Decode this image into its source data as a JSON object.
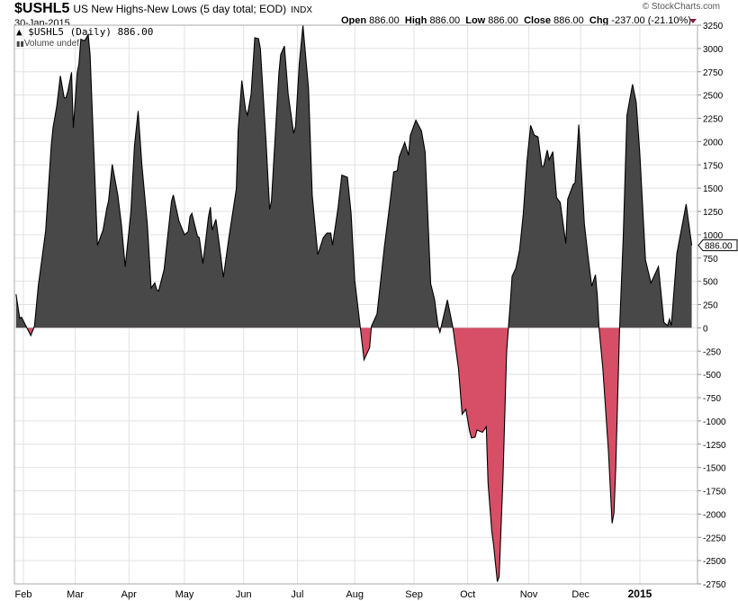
{
  "header": {
    "symbol": "$USHL5",
    "title": "US New Highs-New Lows (5 day total; EOD)",
    "exchange": "INDX",
    "date": "30-Jan-2015",
    "copyright": "© StockCharts.com",
    "open_label": "Open",
    "open": "886.00",
    "high_label": "High",
    "high": "886.00",
    "low_label": "Low",
    "low": "886.00",
    "close_label": "Close",
    "close": "886.00",
    "chg_label": "Chg",
    "chg": "-237.00 (-21.10%)",
    "chg_direction": "down"
  },
  "legend": {
    "series": "$USHL5 (Daily) 886.00",
    "volume": "Volume undef"
  },
  "chart_data": {
    "type": "area",
    "title": "",
    "xlabel": "",
    "ylabel": "",
    "ylim": [
      -2750,
      3250
    ],
    "y_ticks": [
      3250,
      3000,
      2750,
      2500,
      2250,
      2000,
      1750,
      1500,
      1250,
      1000,
      750,
      500,
      250,
      0,
      -250,
      -500,
      -750,
      -1000,
      -1250,
      -1500,
      -1750,
      -2000,
      -2250,
      -2500,
      -2750
    ],
    "x_ticks": [
      {
        "label": "Feb",
        "date": "2014-02-03"
      },
      {
        "label": "Mar",
        "date": "2014-03-03"
      },
      {
        "label": "Apr",
        "date": "2014-04-01"
      },
      {
        "label": "May",
        "date": "2014-05-01"
      },
      {
        "label": "Jun",
        "date": "2014-06-02"
      },
      {
        "label": "Jul",
        "date": "2014-07-01"
      },
      {
        "label": "Aug",
        "date": "2014-08-01"
      },
      {
        "label": "Sep",
        "date": "2014-09-02"
      },
      {
        "label": "Oct",
        "date": "2014-10-01"
      },
      {
        "label": "Nov",
        "date": "2014-11-03"
      },
      {
        "label": "Dec",
        "date": "2014-12-01"
      },
      {
        "label": "2015",
        "date": "2015-01-02",
        "bold": true
      }
    ],
    "grid": true,
    "last_value_label": "886.00",
    "colors": {
      "positive": "#484848",
      "negative": "#d64f66",
      "line": "#000000",
      "grid": "#e2e2e2"
    },
    "points": [
      [
        "2014-01-30",
        361
      ],
      [
        "2014-02-01",
        102
      ],
      [
        "2014-02-02",
        115
      ],
      [
        "2014-02-07",
        -82
      ],
      [
        "2014-02-09",
        17
      ],
      [
        "2014-02-11",
        446
      ],
      [
        "2014-02-15",
        1037
      ],
      [
        "2014-02-18",
        1952
      ],
      [
        "2014-02-19",
        2148
      ],
      [
        "2014-02-21",
        2377
      ],
      [
        "2014-02-23",
        2706
      ],
      [
        "2014-02-25",
        2470
      ],
      [
        "2014-02-26",
        2470
      ],
      [
        "2014-02-27",
        2541
      ],
      [
        "2014-03-01",
        2745
      ],
      [
        "2014-03-02",
        2148
      ],
      [
        "2014-03-04",
        2735
      ],
      [
        "2014-03-05",
        2834
      ],
      [
        "2014-03-06",
        3099
      ],
      [
        "2014-03-08",
        3082
      ],
      [
        "2014-03-10",
        3148
      ],
      [
        "2014-03-11",
        2935
      ],
      [
        "2014-03-15",
        886
      ],
      [
        "2014-03-18",
        1050
      ],
      [
        "2014-03-20",
        1280
      ],
      [
        "2014-03-21",
        1361
      ],
      [
        "2014-03-23",
        1755
      ],
      [
        "2014-03-26",
        1427
      ],
      [
        "2014-03-28",
        1099
      ],
      [
        "2014-03-30",
        656
      ],
      [
        "2014-04-02",
        1230
      ],
      [
        "2014-04-04",
        1952
      ],
      [
        "2014-04-06",
        2328
      ],
      [
        "2014-04-08",
        1755
      ],
      [
        "2014-04-11",
        1099
      ],
      [
        "2014-04-13",
        427
      ],
      [
        "2014-04-15",
        483
      ],
      [
        "2014-04-16",
        410
      ],
      [
        "2014-04-17",
        394
      ],
      [
        "2014-04-20",
        624
      ],
      [
        "2014-04-24",
        1361
      ],
      [
        "2014-04-25",
        1427
      ],
      [
        "2014-04-28",
        1148
      ],
      [
        "2014-05-01",
        1000
      ],
      [
        "2014-05-03",
        1034
      ],
      [
        "2014-05-04",
        1197
      ],
      [
        "2014-05-05",
        1230
      ],
      [
        "2014-05-08",
        985
      ],
      [
        "2014-05-09",
        968
      ],
      [
        "2014-05-11",
        690
      ],
      [
        "2014-05-14",
        1197
      ],
      [
        "2014-05-15",
        1295
      ],
      [
        "2014-05-16",
        1050
      ],
      [
        "2014-05-18",
        1165
      ],
      [
        "2014-05-20",
        870
      ],
      [
        "2014-05-22",
        542
      ],
      [
        "2014-05-25",
        968
      ],
      [
        "2014-05-29",
        1492
      ],
      [
        "2014-05-30",
        2115
      ],
      [
        "2014-06-01",
        2656
      ],
      [
        "2014-06-03",
        2344
      ],
      [
        "2014-06-04",
        2285
      ],
      [
        "2014-06-06",
        2509
      ],
      [
        "2014-06-08",
        3115
      ],
      [
        "2014-06-10",
        3105
      ],
      [
        "2014-06-11",
        3000
      ],
      [
        "2014-06-14",
        2016
      ],
      [
        "2014-06-16",
        1270
      ],
      [
        "2014-06-17",
        1361
      ],
      [
        "2014-06-21",
        2738
      ],
      [
        "2014-06-22",
        2935
      ],
      [
        "2014-06-24",
        3026
      ],
      [
        "2014-06-26",
        2509
      ],
      [
        "2014-06-29",
        2088
      ],
      [
        "2014-06-30",
        2164
      ],
      [
        "2014-07-02",
        2834
      ],
      [
        "2014-07-04",
        3247
      ],
      [
        "2014-07-07",
        2574
      ],
      [
        "2014-07-09",
        1427
      ],
      [
        "2014-07-12",
        787
      ],
      [
        "2014-07-15",
        968
      ],
      [
        "2014-07-17",
        1017
      ],
      [
        "2014-07-19",
        1017
      ],
      [
        "2014-07-20",
        886
      ],
      [
        "2014-07-23",
        1295
      ],
      [
        "2014-07-25",
        1640
      ],
      [
        "2014-07-28",
        1617
      ],
      [
        "2014-07-30",
        1230
      ],
      [
        "2014-08-01",
        509
      ],
      [
        "2014-08-04",
        0
      ],
      [
        "2014-08-06",
        -343
      ],
      [
        "2014-08-09",
        -212
      ],
      [
        "2014-08-10",
        17
      ],
      [
        "2014-08-13",
        149
      ],
      [
        "2014-08-17",
        870
      ],
      [
        "2014-08-20",
        1345
      ],
      [
        "2014-08-22",
        1673
      ],
      [
        "2014-08-24",
        1689
      ],
      [
        "2014-08-25",
        1837
      ],
      [
        "2014-08-28",
        1991
      ],
      [
        "2014-08-30",
        1853
      ],
      [
        "2014-08-31",
        2066
      ],
      [
        "2014-09-03",
        2230
      ],
      [
        "2014-09-06",
        2115
      ],
      [
        "2014-09-08",
        1886
      ],
      [
        "2014-09-11",
        476
      ],
      [
        "2014-09-13",
        312
      ],
      [
        "2014-09-15",
        17
      ],
      [
        "2014-09-16",
        -48
      ],
      [
        "2014-09-20",
        299
      ],
      [
        "2014-09-23",
        6
      ],
      [
        "2014-09-26",
        -435
      ],
      [
        "2014-09-28",
        -929
      ],
      [
        "2014-09-30",
        -875
      ],
      [
        "2014-10-02",
        -1105
      ],
      [
        "2014-10-03",
        -1182
      ],
      [
        "2014-10-05",
        -1174
      ],
      [
        "2014-10-06",
        -1098
      ],
      [
        "2014-10-09",
        -1122
      ],
      [
        "2014-10-11",
        -1062
      ],
      [
        "2014-10-12",
        -1668
      ],
      [
        "2014-10-14",
        -2180
      ],
      [
        "2014-10-15",
        -2338
      ],
      [
        "2014-10-17",
        -2726
      ],
      [
        "2014-10-18",
        -2673
      ],
      [
        "2014-10-20",
        -1633
      ],
      [
        "2014-10-22",
        -259
      ],
      [
        "2014-10-24",
        270
      ],
      [
        "2014-10-25",
        553
      ],
      [
        "2014-10-27",
        640
      ],
      [
        "2014-10-29",
        835
      ],
      [
        "2014-10-31",
        1223
      ],
      [
        "2014-11-02",
        1786
      ],
      [
        "2014-11-04",
        2175
      ],
      [
        "2014-11-06",
        2068
      ],
      [
        "2014-11-08",
        2051
      ],
      [
        "2014-11-10",
        1733
      ],
      [
        "2014-11-11",
        1733
      ],
      [
        "2014-11-13",
        1910
      ],
      [
        "2014-11-14",
        1804
      ],
      [
        "2014-11-16",
        1892
      ],
      [
        "2014-11-18",
        1399
      ],
      [
        "2014-11-20",
        1346
      ],
      [
        "2014-11-23",
        905
      ],
      [
        "2014-11-24",
        1381
      ],
      [
        "2014-11-27",
        1539
      ],
      [
        "2014-11-28",
        1558
      ],
      [
        "2014-11-30",
        2182
      ],
      [
        "2014-12-03",
        1116
      ],
      [
        "2014-12-05",
        764
      ],
      [
        "2014-12-07",
        446
      ],
      [
        "2014-12-09",
        570
      ],
      [
        "2014-12-10",
        341
      ],
      [
        "2014-12-11",
        -12
      ],
      [
        "2014-12-13",
        -435
      ],
      [
        "2014-12-16",
        -1316
      ],
      [
        "2014-12-18",
        -2099
      ],
      [
        "2014-12-19",
        -1986
      ],
      [
        "2014-12-20",
        -1492
      ],
      [
        "2014-12-22",
        -12
      ],
      [
        "2014-12-24",
        976
      ],
      [
        "2014-12-26",
        2280
      ],
      [
        "2014-12-29",
        2615
      ],
      [
        "2014-12-31",
        2421
      ],
      [
        "2015-01-02",
        1857
      ],
      [
        "2015-01-05",
        729
      ],
      [
        "2015-01-08",
        482
      ],
      [
        "2015-01-12",
        658
      ],
      [
        "2015-01-15",
        59
      ],
      [
        "2015-01-17",
        24
      ],
      [
        "2015-01-18",
        94
      ],
      [
        "2015-01-19",
        24
      ],
      [
        "2015-01-22",
        800
      ],
      [
        "2015-01-27",
        1328
      ],
      [
        "2015-01-30",
        886
      ]
    ]
  }
}
